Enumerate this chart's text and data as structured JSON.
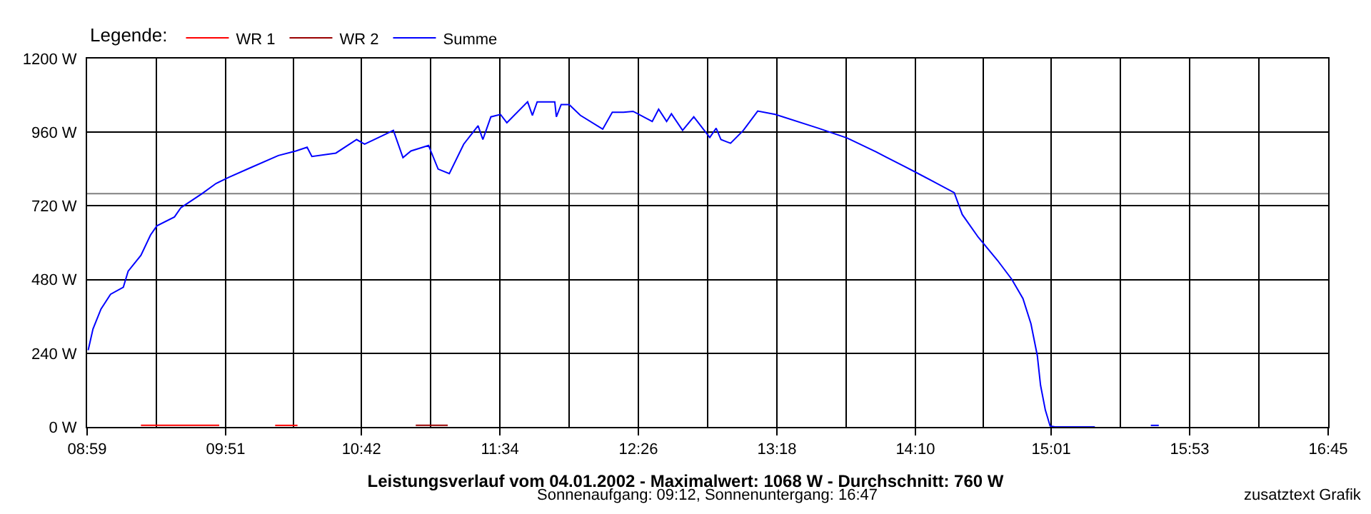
{
  "chart_data": {
    "type": "line",
    "title": "Leistungsverlauf vom 04.01.2002 - Maximalwert: 1068 W - Durchschnitt: 760 W",
    "subtitle": "Sonnenaufgang: 09:12, Sonnenuntergang: 16:47",
    "legend_title": "Legende:",
    "annotations": [
      "zusatztext Grafik"
    ],
    "xlim": [
      8.9833,
      16.75
    ],
    "xticks": [
      {
        "value": 8.9833,
        "label": "08:59"
      },
      {
        "value": 9.4167,
        "label": null
      },
      {
        "value": 9.85,
        "label": "09:51"
      },
      {
        "value": 10.275,
        "label": null
      },
      {
        "value": 10.7,
        "label": "10:42"
      },
      {
        "value": 11.1333,
        "label": null
      },
      {
        "value": 11.5667,
        "label": "11:34"
      },
      {
        "value": 12.0,
        "label": null
      },
      {
        "value": 12.4333,
        "label": "12:26"
      },
      {
        "value": 12.8667,
        "label": null
      },
      {
        "value": 13.3,
        "label": "13:18"
      },
      {
        "value": 13.7333,
        "label": null
      },
      {
        "value": 14.1667,
        "label": "14:10"
      },
      {
        "value": 14.5917,
        "label": null
      },
      {
        "value": 15.0167,
        "label": "15:01"
      },
      {
        "value": 15.45,
        "label": null
      },
      {
        "value": 15.8833,
        "label": "15:53"
      },
      {
        "value": 16.3167,
        "label": null
      },
      {
        "value": 16.75,
        "label": "16:45"
      }
    ],
    "ylim": [
      0,
      1200
    ],
    "yticks": [
      {
        "value": 0,
        "label": "0 W"
      },
      {
        "value": 240,
        "label": "240 W"
      },
      {
        "value": 480,
        "label": "480 W"
      },
      {
        "value": 720,
        "label": "720 W"
      },
      {
        "value": 960,
        "label": "960 W"
      },
      {
        "value": 1200,
        "label": "1200 W"
      }
    ],
    "grid": true,
    "legend": "top left",
    "marker": "none",
    "line_style": "solid",
    "ref_lines": [
      {
        "axis": "y",
        "value": 760,
        "color": "#808080"
      }
    ],
    "series": [
      {
        "name": "WR 1",
        "color": "#ff0000",
        "x": [
          9.32,
          9.81,
          9.82,
          10.16,
          10.3
        ],
        "values": [
          5,
          5,
          null,
          5,
          5
        ]
      },
      {
        "name": "WR 2",
        "color": "#990000",
        "x": [
          11.04,
          11.24
        ],
        "values": [
          5,
          5
        ]
      },
      {
        "name": "Summe",
        "color": "#0000ff",
        "x": [
          8.99,
          9.02,
          9.07,
          9.13,
          9.21,
          9.24,
          9.32,
          9.38,
          9.42,
          9.53,
          9.57,
          9.7,
          9.79,
          9.87,
          10.0,
          10.18,
          10.29,
          10.36,
          10.39,
          10.54,
          10.67,
          10.72,
          10.84,
          10.9,
          10.96,
          11.01,
          11.12,
          11.18,
          11.25,
          11.34,
          11.43,
          11.46,
          11.51,
          11.57,
          11.61,
          11.74,
          11.77,
          11.8,
          11.91,
          11.92,
          11.95,
          12.0,
          12.07,
          12.21,
          12.27,
          12.34,
          12.4,
          12.52,
          12.56,
          12.61,
          12.64,
          12.71,
          12.78,
          12.88,
          12.92,
          12.95,
          13.01,
          13.09,
          13.18,
          13.29,
          13.56,
          13.74,
          13.92,
          13.98,
          14.16,
          14.28,
          14.41,
          14.46,
          14.56,
          14.68,
          14.77,
          14.84,
          14.89,
          14.93,
          14.95,
          14.98,
          15.01,
          15.04,
          15.29,
          15.3,
          15.64,
          15.69
        ],
        "values": [
          250,
          319,
          384,
          432,
          455,
          507,
          559,
          625,
          655,
          684,
          714,
          759,
          793,
          813,
          843,
          884,
          899,
          911,
          881,
          892,
          936,
          921,
          951,
          966,
          877,
          899,
          917,
          840,
          825,
          921,
          981,
          936,
          1010,
          1018,
          991,
          1059,
          1015,
          1059,
          1059,
          1010,
          1050,
          1050,
          1015,
          970,
          1025,
          1025,
          1028,
          995,
          1035,
          995,
          1020,
          966,
          1010,
          943,
          973,
          936,
          924,
          966,
          1029,
          1018,
          973,
          941,
          896,
          880,
          832,
          799,
          763,
          692,
          618,
          543,
          481,
          418,
          336,
          232,
          136,
          55,
          3,
          0,
          0,
          null,
          5,
          5
        ]
      }
    ]
  }
}
